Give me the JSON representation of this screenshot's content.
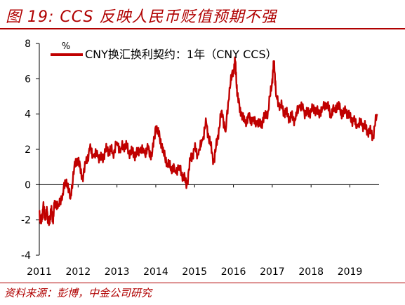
{
  "title": "图 19: CCS 反映人民币贬值预期不强",
  "source": "资料来源：彭博，中金公司研究",
  "colors": {
    "series": "#c00000",
    "brand": "#b00000"
  },
  "chart_data": {
    "type": "line",
    "unit_label": "%",
    "legend_label": "CNY换汇换利契约：1年（CNY CCS）",
    "legend_position": "top-left",
    "ylim": [
      -4,
      8
    ],
    "yticks": [
      -4,
      -2,
      0,
      2,
      4,
      6,
      8
    ],
    "xlim": [
      2011.0,
      2019.75
    ],
    "xticks": [
      2011,
      2012,
      2013,
      2014,
      2015,
      2016,
      2017,
      2018,
      2019
    ],
    "grid": false,
    "series": [
      {
        "name": "CNY换汇换利契约：1年（CNY CCS）",
        "x": [
          2011.0,
          2011.05,
          2011.1,
          2011.15,
          2011.2,
          2011.25,
          2011.3,
          2011.35,
          2011.4,
          2011.5,
          2011.6,
          2011.7,
          2011.8,
          2011.9,
          2012.0,
          2012.1,
          2012.2,
          2012.3,
          2012.4,
          2012.5,
          2012.6,
          2012.7,
          2012.8,
          2012.9,
          2013.0,
          2013.1,
          2013.2,
          2013.3,
          2013.4,
          2013.5,
          2013.6,
          2013.7,
          2013.8,
          2013.9,
          2014.0,
          2014.1,
          2014.2,
          2014.3,
          2014.4,
          2014.5,
          2014.6,
          2014.7,
          2014.8,
          2014.9,
          2015.0,
          2015.1,
          2015.2,
          2015.3,
          2015.4,
          2015.5,
          2015.6,
          2015.7,
          2015.8,
          2015.9,
          2016.0,
          2016.05,
          2016.1,
          2016.2,
          2016.3,
          2016.4,
          2016.5,
          2016.6,
          2016.7,
          2016.8,
          2016.9,
          2017.0,
          2017.05,
          2017.1,
          2017.2,
          2017.3,
          2017.4,
          2017.5,
          2017.6,
          2017.7,
          2017.8,
          2017.9,
          2018.0,
          2018.1,
          2018.2,
          2018.3,
          2018.4,
          2018.5,
          2018.6,
          2018.7,
          2018.8,
          2018.9,
          2019.0,
          2019.1,
          2019.2,
          2019.3,
          2019.4,
          2019.5,
          2019.6,
          2019.7
        ],
        "y": [
          -1.5,
          -2.2,
          -1.2,
          -2.0,
          -1.5,
          -2.3,
          -1.4,
          -2.0,
          -1.0,
          -1.2,
          -0.5,
          0.3,
          -0.8,
          1.0,
          1.5,
          0.3,
          1.2,
          2.0,
          1.6,
          1.7,
          1.4,
          1.9,
          2.0,
          1.8,
          2.4,
          2.0,
          2.3,
          1.9,
          1.8,
          1.7,
          2.0,
          1.8,
          2.0,
          1.6,
          3.3,
          2.7,
          1.8,
          1.2,
          1.0,
          0.8,
          1.0,
          0.5,
          0.0,
          1.5,
          2.0,
          1.7,
          2.5,
          3.5,
          2.3,
          1.3,
          2.8,
          4.2,
          3.0,
          5.5,
          6.5,
          7.0,
          5.0,
          4.0,
          3.5,
          3.8,
          3.6,
          3.5,
          3.4,
          3.8,
          4.2,
          6.0,
          7.0,
          5.0,
          4.5,
          4.2,
          3.9,
          3.8,
          3.7,
          4.5,
          4.2,
          4.0,
          4.2,
          4.3,
          4.0,
          4.4,
          4.6,
          4.0,
          4.3,
          4.5,
          4.0,
          4.2,
          3.8,
          3.6,
          3.3,
          3.5,
          3.2,
          3.0,
          2.8,
          4.0
        ]
      }
    ],
    "xlabel": "",
    "ylabel": ""
  }
}
